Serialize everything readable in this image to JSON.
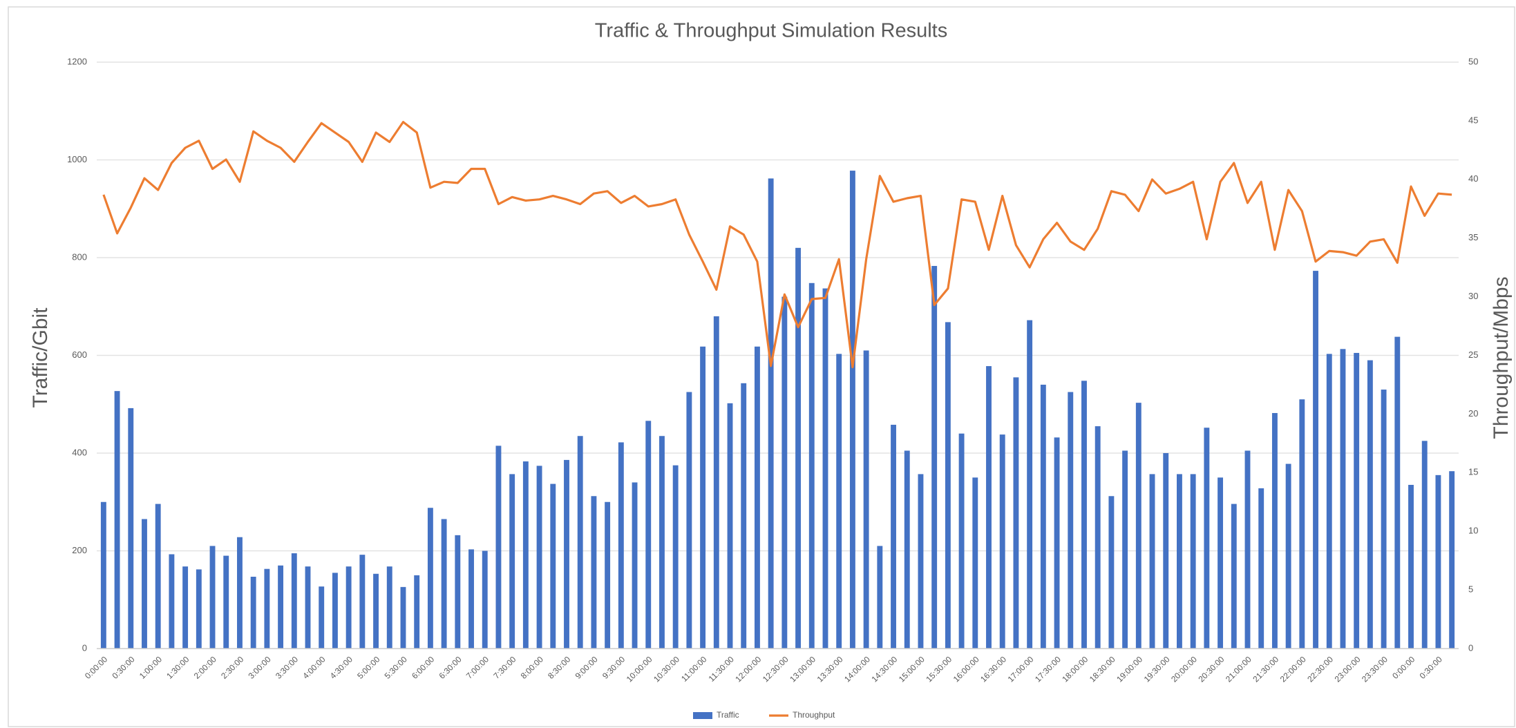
{
  "chart_data": {
    "type": "bar-line",
    "title": "Traffic & Throughput Simulation Results",
    "y_label": "Traffic/Gbit",
    "y2_label": "Throughput/Mbps",
    "categories": [
      "0:00:00",
      null,
      "0:30:00",
      null,
      "1:00:00",
      null,
      "1:30:00",
      null,
      "2:00:00",
      null,
      "2:30:00",
      null,
      "3:00:00",
      null,
      "3:30:00",
      null,
      "4:00:00",
      null,
      "4:30:00",
      null,
      "5:00:00",
      null,
      "5:30:00",
      null,
      "6:00:00",
      null,
      "6:30:00",
      null,
      "7:00:00",
      null,
      "7:30:00",
      null,
      "8:00:00",
      null,
      "8:30:00",
      null,
      "9:00:00",
      null,
      "9:30:00",
      null,
      "10:00:00",
      null,
      "10:30:00",
      null,
      "11:00:00",
      null,
      "11:30:00",
      null,
      "12:00:00",
      null,
      "12:30:00",
      null,
      "13:00:00",
      null,
      "13:30:00",
      null,
      "14:00:00",
      null,
      "14:30:00",
      null,
      "15:00:00",
      null,
      "15:30:00",
      null,
      "16:00:00",
      null,
      "16:30:00",
      null,
      "17:00:00",
      null,
      "17:30:00",
      null,
      "18:00:00",
      null,
      "18:30:00",
      null,
      "19:00:00",
      null,
      "19:30:00",
      null,
      "20:00:00",
      null,
      "20:30:00",
      null,
      "21:00:00",
      null,
      "21:30:00",
      null,
      "22:00:00",
      null,
      "22:30:00",
      null,
      "23:00:00",
      null,
      "23:30:00",
      null,
      "0:00:00",
      null,
      "0:30:00",
      null
    ],
    "series": [
      {
        "name": "Traffic",
        "type": "bar",
        "color": "#4472c4",
        "values": [
          300,
          527,
          492,
          265,
          296,
          193,
          168,
          162,
          210,
          190,
          228,
          147,
          163,
          170,
          195,
          168,
          127,
          155,
          168,
          192,
          153,
          168,
          126,
          150,
          288,
          265,
          232,
          203,
          200,
          415,
          357,
          383,
          374,
          337,
          386,
          435,
          312,
          300,
          422,
          340,
          466,
          435,
          375,
          525,
          618,
          680,
          502,
          543,
          618,
          962,
          720,
          820,
          748,
          737,
          603,
          978,
          610,
          210,
          458,
          405,
          357,
          783,
          668,
          440,
          350,
          578,
          438,
          555,
          672,
          540,
          432,
          525,
          548,
          455,
          312,
          405,
          503,
          357,
          400,
          357,
          357,
          452,
          350,
          296,
          405,
          328,
          482,
          378,
          510,
          773,
          603,
          613,
          605,
          590,
          530,
          638,
          335,
          425,
          355,
          363
        ]
      },
      {
        "name": "Throughput",
        "type": "line",
        "axis": "y2",
        "color": "#ed7d31",
        "values": [
          38.7,
          35.4,
          37.6,
          40.1,
          39.1,
          41.4,
          42.7,
          43.3,
          40.9,
          41.7,
          39.8,
          44.1,
          43.3,
          42.7,
          41.5,
          43.2,
          44.8,
          44.0,
          43.2,
          41.5,
          44.0,
          43.2,
          44.9,
          44.0,
          39.3,
          39.8,
          39.7,
          40.9,
          40.9,
          37.9,
          38.5,
          38.2,
          38.3,
          38.6,
          38.3,
          37.9,
          38.8,
          39.0,
          38.0,
          38.6,
          37.7,
          37.9,
          38.3,
          35.3,
          33.0,
          30.6,
          36.0,
          35.3,
          33.0,
          24.1,
          30.2,
          27.4,
          29.8,
          29.9,
          33.2,
          24.0,
          33.2,
          40.3,
          38.1,
          38.4,
          38.6,
          29.3,
          30.7,
          38.3,
          38.1,
          34.0,
          38.6,
          34.4,
          32.5,
          34.9,
          36.3,
          34.7,
          34.0,
          35.8,
          39.0,
          38.7,
          37.3,
          40.0,
          38.8,
          39.2,
          39.8,
          34.9,
          39.8,
          41.4,
          38.0,
          39.8,
          34.0,
          39.1,
          37.3,
          33.0,
          33.9,
          33.8,
          33.5,
          34.7,
          34.9,
          32.9,
          39.4,
          36.9,
          38.8,
          38.7
        ]
      }
    ],
    "ylim": [
      0,
      1200
    ],
    "yticks": [
      0,
      200,
      400,
      600,
      800,
      1000,
      1200
    ],
    "y2lim": [
      0,
      50
    ],
    "y2ticks": [
      0,
      5,
      10,
      15,
      20,
      25,
      30,
      35,
      40,
      45,
      50
    ],
    "grid": true,
    "legend": "bottom"
  }
}
